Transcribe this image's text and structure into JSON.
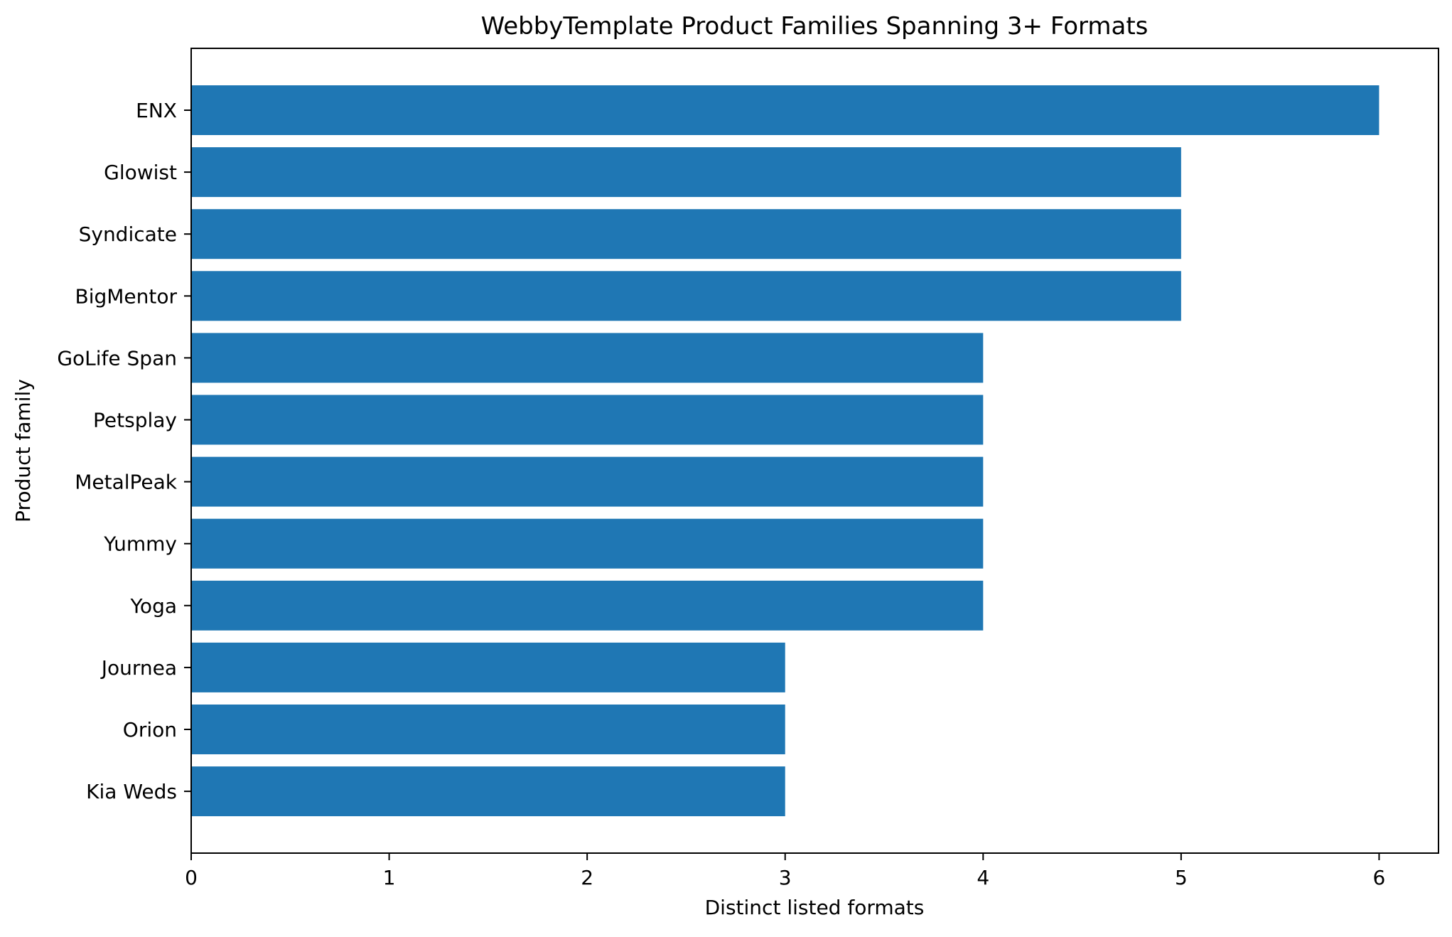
{
  "chart_data": {
    "type": "bar",
    "orientation": "horizontal",
    "title": "WebbyTemplate Product Families Spanning 3+ Formats",
    "xlabel": "Distinct listed formats",
    "ylabel": "Product family",
    "categories": [
      "ENX",
      "Glowist",
      "Syndicate",
      "BigMentor",
      "GoLife Span",
      "Petsplay",
      "MetalPeak",
      "Yummy",
      "Yoga",
      "Journea",
      "Orion",
      "Kia Weds"
    ],
    "values": [
      6,
      5,
      5,
      5,
      4,
      4,
      4,
      4,
      4,
      3,
      3,
      3
    ],
    "xlim": [
      0,
      6.3
    ],
    "xticks": [
      "0",
      "1",
      "2",
      "3",
      "4",
      "5",
      "6"
    ],
    "grid": false,
    "legend": "none",
    "bar_color": "#1f77b4"
  }
}
